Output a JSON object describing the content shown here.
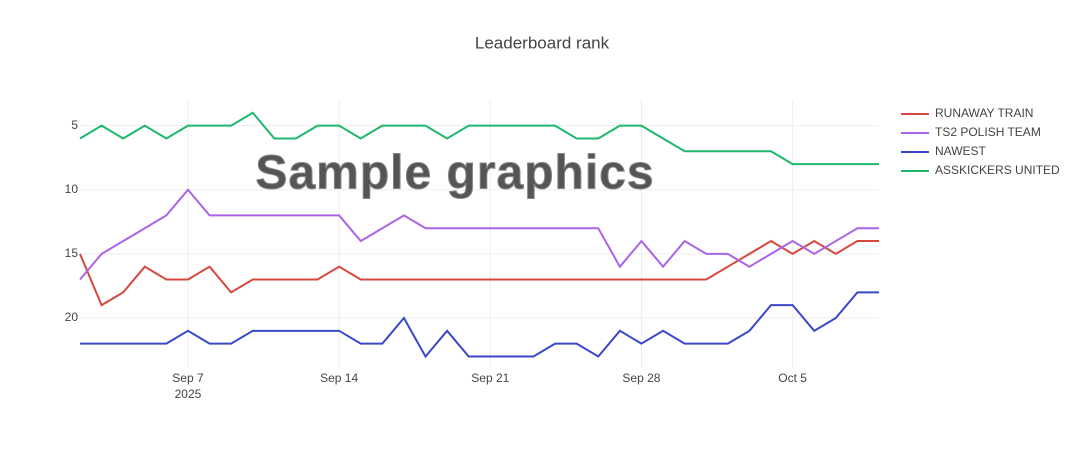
{
  "chart_data": {
    "type": "line",
    "title": "Leaderboard rank",
    "watermark": "Sample graphics",
    "x": [
      "2025-09-02",
      "2025-09-03",
      "2025-09-04",
      "2025-09-05",
      "2025-09-06",
      "2025-09-07",
      "2025-09-08",
      "2025-09-09",
      "2025-09-10",
      "2025-09-11",
      "2025-09-12",
      "2025-09-13",
      "2025-09-14",
      "2025-09-15",
      "2025-09-16",
      "2025-09-17",
      "2025-09-18",
      "2025-09-19",
      "2025-09-20",
      "2025-09-21",
      "2025-09-22",
      "2025-09-23",
      "2025-09-24",
      "2025-09-25",
      "2025-09-26",
      "2025-09-27",
      "2025-09-28",
      "2025-09-29",
      "2025-09-30",
      "2025-10-01",
      "2025-10-02",
      "2025-10-03",
      "2025-10-04",
      "2025-10-05",
      "2025-10-06",
      "2025-10-07",
      "2025-10-08",
      "2025-10-09"
    ],
    "series": [
      {
        "name": "RUNAWAY TRAIN",
        "color": "#d6483e",
        "values": [
          15,
          19,
          18,
          16,
          17,
          17,
          16,
          18,
          17,
          17,
          17,
          17,
          16,
          17,
          17,
          17,
          17,
          17,
          17,
          17,
          17,
          17,
          17,
          17,
          17,
          17,
          17,
          17,
          17,
          17,
          16,
          15,
          14,
          15,
          14,
          15,
          14,
          14
        ]
      },
      {
        "name": "TS2 POLISH TEAM",
        "color": "#ab63e8",
        "values": [
          17,
          15,
          14,
          13,
          12,
          10,
          12,
          12,
          12,
          12,
          12,
          12,
          12,
          14,
          13,
          12,
          13,
          13,
          13,
          13,
          13,
          13,
          13,
          13,
          13,
          16,
          14,
          16,
          14,
          15,
          15,
          16,
          15,
          14,
          15,
          14,
          13,
          13
        ]
      },
      {
        "name": "NAWEST",
        "color": "#3b47c8",
        "values": [
          22,
          22,
          22,
          22,
          22,
          21,
          22,
          22,
          21,
          21,
          21,
          21,
          21,
          22,
          22,
          20,
          23,
          21,
          23,
          23,
          23,
          23,
          22,
          22,
          23,
          21,
          22,
          21,
          22,
          22,
          22,
          21,
          19,
          19,
          21,
          20,
          18,
          18
        ]
      },
      {
        "name": "ASSKICKERS UNITED",
        "color": "#1db86c",
        "values": [
          6,
          5,
          6,
          5,
          6,
          5,
          5,
          5,
          4,
          6,
          6,
          5,
          5,
          6,
          5,
          5,
          5,
          6,
          5,
          5,
          5,
          5,
          5,
          6,
          6,
          5,
          5,
          6,
          7,
          7,
          7,
          7,
          7,
          8,
          8,
          8,
          8,
          8
        ]
      }
    ],
    "xlim": [
      "2025-09-02",
      "2025-10-09"
    ],
    "xticks": [
      {
        "value": "2025-09-07",
        "label": "Sep 7",
        "sublabel": "2025"
      },
      {
        "value": "2025-09-14",
        "label": "Sep 14"
      },
      {
        "value": "2025-09-21",
        "label": "Sep 21"
      },
      {
        "value": "2025-09-28",
        "label": "Sep 28"
      },
      {
        "value": "2025-10-05",
        "label": "Oct 5"
      }
    ],
    "ylim": [
      23.9,
      3
    ],
    "yticks": [
      5,
      10,
      15,
      20
    ],
    "grid": true
  }
}
